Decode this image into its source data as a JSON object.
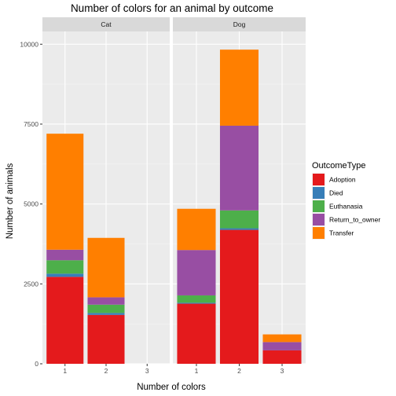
{
  "chart_data": {
    "type": "bar",
    "stacked": true,
    "title": "Number of colors for an animal by outcome",
    "xlabel": "Number of colors",
    "ylabel": "Number of animals",
    "ylim": [
      0,
      10400
    ],
    "yticks": [
      0,
      2500,
      5000,
      7500,
      10000
    ],
    "categories": [
      "1",
      "2",
      "3"
    ],
    "grid": true,
    "legend": {
      "title": "OutcomeType",
      "placement": "right",
      "entries": [
        {
          "name": "Adoption",
          "color": "#e41a1c"
        },
        {
          "name": "Died",
          "color": "#377eb8"
        },
        {
          "name": "Euthanasia",
          "color": "#4daf4a"
        },
        {
          "name": "Return_to_owner",
          "color": "#984ea3"
        },
        {
          "name": "Transfer",
          "color": "#ff7f00"
        }
      ]
    },
    "panels": [
      {
        "name": "Cat",
        "series": [
          {
            "name": "Adoption",
            "values": [
              2720,
              1530,
              0
            ]
          },
          {
            "name": "Died",
            "values": [
              100,
              60,
              0
            ]
          },
          {
            "name": "Euthanasia",
            "values": [
              420,
              260,
              0
            ]
          },
          {
            "name": "Return_to_owner",
            "values": [
              330,
              230,
              0
            ]
          },
          {
            "name": "Transfer",
            "values": [
              3630,
              1860,
              0
            ]
          }
        ]
      },
      {
        "name": "Dog",
        "series": [
          {
            "name": "Adoption",
            "values": [
              1880,
              4190,
              420
            ]
          },
          {
            "name": "Died",
            "values": [
              30,
              50,
              0
            ]
          },
          {
            "name": "Euthanasia",
            "values": [
              230,
              560,
              0
            ]
          },
          {
            "name": "Return_to_owner",
            "values": [
              1420,
              2650,
              260
            ]
          },
          {
            "name": "Transfer",
            "values": [
              1290,
              2380,
              240
            ]
          }
        ]
      }
    ]
  }
}
